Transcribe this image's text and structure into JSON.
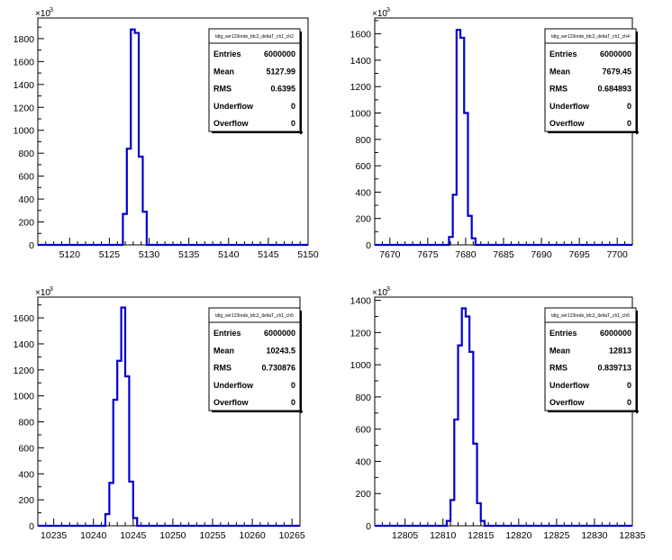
{
  "chart_data": [
    {
      "type": "histogram",
      "y_exponent_label": "×10",
      "y_exponent_power": "3",
      "xlim": [
        5116,
        5150
      ],
      "ylim": [
        0,
        1980
      ],
      "x_ticks": [
        5120,
        5125,
        5130,
        5135,
        5140,
        5145,
        5150
      ],
      "x_tick_labels": [
        "5120",
        "5125",
        "5130",
        "5135",
        "5140",
        "5145",
        "5150"
      ],
      "y_ticks": [
        0,
        200,
        400,
        600,
        800,
        1000,
        1200,
        1400,
        1600,
        1800
      ],
      "y_tick_labels": [
        "0",
        "200",
        "400",
        "600",
        "800",
        "1000",
        "1200",
        "1400",
        "1600",
        "1800"
      ],
      "series_color": "#0000cc",
      "bins": [
        {
          "x0": 5126.2,
          "x1": 5126.7,
          "y": 0
        },
        {
          "x0": 5126.7,
          "x1": 5127.2,
          "y": 270
        },
        {
          "x0": 5127.2,
          "x1": 5127.7,
          "y": 840
        },
        {
          "x0": 5127.7,
          "x1": 5128.2,
          "y": 1880
        },
        {
          "x0": 5128.2,
          "x1": 5128.7,
          "y": 1850
        },
        {
          "x0": 5128.7,
          "x1": 5129.2,
          "y": 770
        },
        {
          "x0": 5129.2,
          "x1": 5129.7,
          "y": 290
        },
        {
          "x0": 5129.7,
          "x1": 5130.2,
          "y": 0
        }
      ],
      "stats": {
        "title": "tdig_ser123redo_tdc2_deltaT_ch1_ch2",
        "rows": [
          {
            "label": "Entries",
            "value": "6000000"
          },
          {
            "label": "Mean",
            "value": "5127.99"
          },
          {
            "label": "RMS",
            "value": "0.6395"
          },
          {
            "label": "Underflow",
            "value": "0"
          },
          {
            "label": "Overflow",
            "value": "0"
          }
        ]
      }
    },
    {
      "type": "histogram",
      "y_exponent_label": "×10",
      "y_exponent_power": "3",
      "xlim": [
        7668,
        7702
      ],
      "ylim": [
        0,
        1720
      ],
      "x_ticks": [
        7670,
        7675,
        7680,
        7685,
        7690,
        7695,
        7700
      ],
      "x_tick_labels": [
        "7670",
        "7675",
        "7680",
        "7685",
        "7690",
        "7695",
        "7700"
      ],
      "y_ticks": [
        0,
        200,
        400,
        600,
        800,
        1000,
        1200,
        1400,
        1600
      ],
      "y_tick_labels": [
        "0",
        "200",
        "400",
        "600",
        "800",
        "1000",
        "1200",
        "1400",
        "1600"
      ],
      "series_color": "#0000cc",
      "bins": [
        {
          "x0": 7677.3,
          "x1": 7677.8,
          "y": 0
        },
        {
          "x0": 7677.8,
          "x1": 7678.3,
          "y": 60
        },
        {
          "x0": 7678.3,
          "x1": 7678.8,
          "y": 380
        },
        {
          "x0": 7678.8,
          "x1": 7679.3,
          "y": 1630
        },
        {
          "x0": 7679.3,
          "x1": 7679.8,
          "y": 1570
        },
        {
          "x0": 7679.8,
          "x1": 7680.3,
          "y": 1000
        },
        {
          "x0": 7680.3,
          "x1": 7680.8,
          "y": 220
        },
        {
          "x0": 7680.8,
          "x1": 7681.3,
          "y": 50
        },
        {
          "x0": 7681.3,
          "x1": 7681.8,
          "y": 0
        }
      ],
      "stats": {
        "title": "tdig_ser123redo_tdc2_deltaT_ch1_ch4",
        "rows": [
          {
            "label": "Entries",
            "value": "6000000"
          },
          {
            "label": "Mean",
            "value": "7679.45"
          },
          {
            "label": "RMS",
            "value": "0.684893"
          },
          {
            "label": "Underflow",
            "value": "0"
          },
          {
            "label": "Overflow",
            "value": "0"
          }
        ]
      }
    },
    {
      "type": "histogram",
      "y_exponent_label": "×10",
      "y_exponent_power": "3",
      "xlim": [
        10233,
        10266
      ],
      "ylim": [
        0,
        1760
      ],
      "x_ticks": [
        10235,
        10240,
        10245,
        10250,
        10255,
        10260,
        10265
      ],
      "x_tick_labels": [
        "10235",
        "10240",
        "10245",
        "10250",
        "10255",
        "10260",
        "10265"
      ],
      "y_ticks": [
        0,
        200,
        400,
        600,
        800,
        1000,
        1200,
        1400,
        1600
      ],
      "y_tick_labels": [
        "0",
        "200",
        "400",
        "600",
        "800",
        "1000",
        "1200",
        "1400",
        "1600"
      ],
      "series_color": "#0000cc",
      "bins": [
        {
          "x0": 10241.0,
          "x1": 10241.5,
          "y": 0
        },
        {
          "x0": 10241.5,
          "x1": 10242.0,
          "y": 90
        },
        {
          "x0": 10242.0,
          "x1": 10242.5,
          "y": 330
        },
        {
          "x0": 10242.5,
          "x1": 10243.0,
          "y": 970
        },
        {
          "x0": 10243.0,
          "x1": 10243.5,
          "y": 1270
        },
        {
          "x0": 10243.5,
          "x1": 10244.0,
          "y": 1680
        },
        {
          "x0": 10244.0,
          "x1": 10244.5,
          "y": 1150
        },
        {
          "x0": 10244.5,
          "x1": 10245.0,
          "y": 340
        },
        {
          "x0": 10245.0,
          "x1": 10245.5,
          "y": 60
        },
        {
          "x0": 10245.5,
          "x1": 10246.0,
          "y": 0
        }
      ],
      "stats": {
        "title": "tdig_ser123redo_tdc2_deltaT_ch1_ch5",
        "rows": [
          {
            "label": "Entries",
            "value": "6000000"
          },
          {
            "label": "Mean",
            "value": "10243.5"
          },
          {
            "label": "RMS",
            "value": "0.730876"
          },
          {
            "label": "Underflow",
            "value": "0"
          },
          {
            "label": "Overflow",
            "value": "0"
          }
        ]
      }
    },
    {
      "type": "histogram",
      "y_exponent_label": "×10",
      "y_exponent_power": "3",
      "xlim": [
        12801,
        12835
      ],
      "ylim": [
        0,
        1420
      ],
      "x_ticks": [
        12805,
        12810,
        12815,
        12820,
        12825,
        12830,
        12835
      ],
      "x_tick_labels": [
        "12805",
        "12810",
        "12815",
        "12820",
        "12825",
        "12830",
        "12835"
      ],
      "y_ticks": [
        0,
        200,
        400,
        600,
        800,
        1000,
        1200,
        1400
      ],
      "y_tick_labels": [
        "0",
        "200",
        "400",
        "600",
        "800",
        "1000",
        "1200",
        "1400"
      ],
      "series_color": "#0000cc",
      "bins": [
        {
          "x0": 12810.0,
          "x1": 12810.5,
          "y": 0
        },
        {
          "x0": 12810.5,
          "x1": 12811.0,
          "y": 30
        },
        {
          "x0": 12811.0,
          "x1": 12811.5,
          "y": 160
        },
        {
          "x0": 12811.5,
          "x1": 12812.0,
          "y": 660
        },
        {
          "x0": 12812.0,
          "x1": 12812.5,
          "y": 1120
        },
        {
          "x0": 12812.5,
          "x1": 12813.0,
          "y": 1350
        },
        {
          "x0": 12813.0,
          "x1": 12813.5,
          "y": 1300
        },
        {
          "x0": 12813.5,
          "x1": 12814.0,
          "y": 1080
        },
        {
          "x0": 12814.0,
          "x1": 12814.5,
          "y": 510
        },
        {
          "x0": 12814.5,
          "x1": 12815.0,
          "y": 140
        },
        {
          "x0": 12815.0,
          "x1": 12815.5,
          "y": 30
        },
        {
          "x0": 12815.5,
          "x1": 12816.0,
          "y": 0
        }
      ],
      "stats": {
        "title": "tdig_ser123redo_tdc2_deltaT_ch1_ch6",
        "rows": [
          {
            "label": "Entries",
            "value": "6000000"
          },
          {
            "label": "Mean",
            "value": "12813"
          },
          {
            "label": "RMS",
            "value": "0.839713"
          },
          {
            "label": "Underflow",
            "value": "0"
          },
          {
            "label": "Overflow",
            "value": "0"
          }
        ]
      }
    }
  ]
}
